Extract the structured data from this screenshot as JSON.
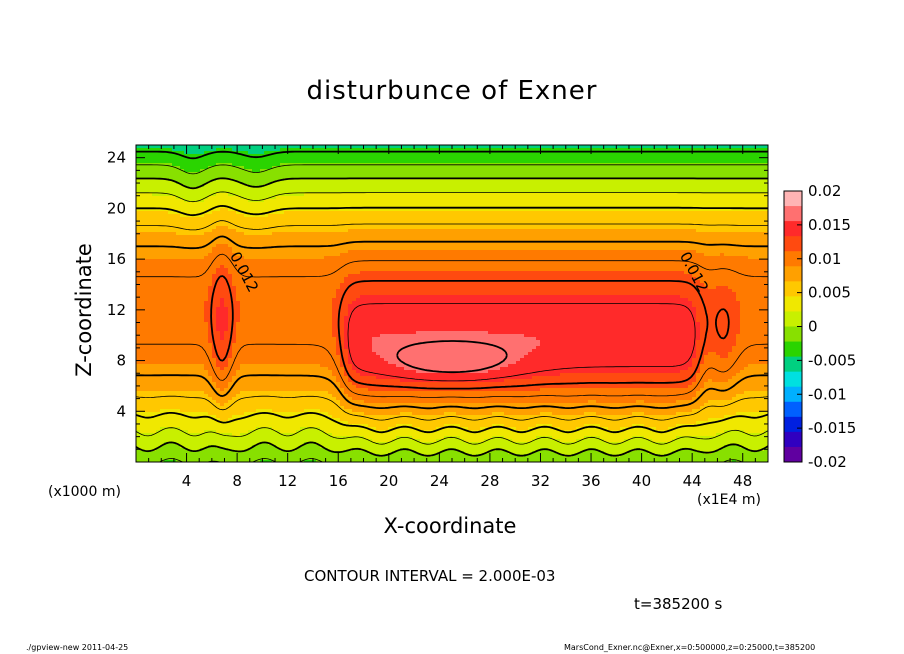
{
  "chart_data": {
    "type": "heatmap",
    "title": "disturbunce of Exner",
    "xlabel": "X-coordinate",
    "ylabel": "Z-coordinate",
    "x_unit_note": "(x1E4 m)",
    "y_unit_note": "(x1000 m)",
    "xlim": [
      0,
      50
    ],
    "ylim": [
      0,
      25
    ],
    "x_ticks": [
      4,
      8,
      12,
      16,
      20,
      24,
      28,
      32,
      36,
      40,
      44,
      48
    ],
    "y_ticks": [
      4,
      8,
      12,
      16,
      20,
      24
    ],
    "colorbar": {
      "min": -0.02,
      "max": 0.02,
      "tick_labels": [
        "0.02",
        "0.015",
        "0.01",
        "0.005",
        "0",
        "-0.005",
        "-0.01",
        "-0.015",
        "-0.02"
      ],
      "tick_values": [
        0.02,
        0.015,
        0.01,
        0.005,
        0,
        -0.005,
        -0.01,
        -0.015,
        -0.02
      ],
      "colors": [
        "#ffb4b4",
        "#ff7070",
        "#ff2a2a",
        "#ff4a10",
        "#ff7a00",
        "#ffa000",
        "#ffc800",
        "#f0e800",
        "#c8f000",
        "#88e000",
        "#2ad400",
        "#00d080",
        "#00e0e0",
        "#00b0ff",
        "#0060ff",
        "#0020e0",
        "#3000c0",
        "#6000a0"
      ]
    },
    "contour_labels": [
      {
        "text": "0.012",
        "x": 8.2,
        "z": 14.8
      },
      {
        "text": "0.012",
        "x": 43.8,
        "z": 14.8
      }
    ],
    "contour_interval": 0.002,
    "grid": false
  },
  "annotations": {
    "contour_interval_text": "CONTOUR INTERVAL = 2.000E-03",
    "time_text": "t=385200 s"
  },
  "footer": {
    "left": "./gpview-new   2011-04-25",
    "right": "MarsCond_Exner.nc@Exner,x=0:500000,z=0:25000,t=385200"
  }
}
